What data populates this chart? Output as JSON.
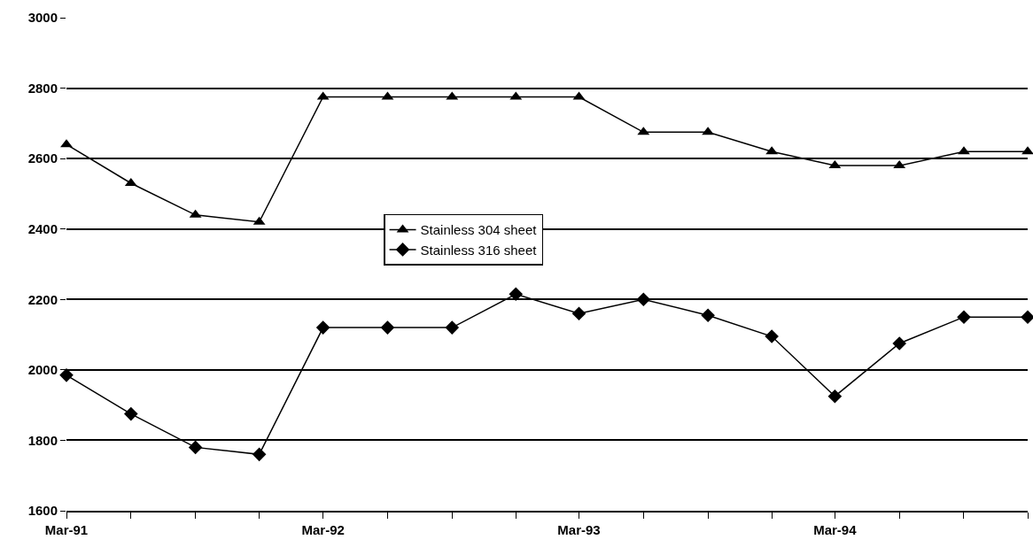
{
  "chart_data": {
    "type": "line",
    "x": [
      "1991-03",
      "1991-06",
      "1991-09",
      "1991-12",
      "1992-03",
      "1992-06",
      "1992-09",
      "1992-12",
      "1993-03",
      "1993-06",
      "1993-09",
      "1993-12",
      "1994-03",
      "1994-06",
      "1994-09",
      "1994-12"
    ],
    "series": [
      {
        "name": "Stainless 304 sheet",
        "color": "#000000",
        "marker": "triangle",
        "values": [
          2640,
          2530,
          2440,
          2420,
          2775,
          2775,
          2775,
          2775,
          2775,
          2675,
          2675,
          2620,
          2580,
          2580,
          2620,
          2620
        ]
      },
      {
        "name": "Stainless 316 sheet",
        "color": "#000000",
        "marker": "diamond",
        "values": [
          1985,
          1875,
          1780,
          1760,
          2120,
          2120,
          2120,
          2215,
          2160,
          2200,
          2155,
          2095,
          1925,
          2075,
          2150,
          2150
        ]
      }
    ],
    "xlim": [
      "1991-03",
      "1994-12"
    ],
    "xticks": [
      {
        "value": "1991-03",
        "label": "Mar-91"
      },
      {
        "value": "1991-06",
        "label": null
      },
      {
        "value": "1991-09",
        "label": null
      },
      {
        "value": "1991-12",
        "label": null
      },
      {
        "value": "1992-03",
        "label": "Mar-92"
      },
      {
        "value": "1992-06",
        "label": null
      },
      {
        "value": "1992-09",
        "label": null
      },
      {
        "value": "1992-12",
        "label": null
      },
      {
        "value": "1993-03",
        "label": "Mar-93"
      },
      {
        "value": "1993-06",
        "label": null
      },
      {
        "value": "1993-09",
        "label": null
      },
      {
        "value": "1993-12",
        "label": null
      },
      {
        "value": "1994-03",
        "label": "Mar-94"
      },
      {
        "value": "1994-06",
        "label": null
      },
      {
        "value": "1994-09",
        "label": null
      },
      {
        "value": "1994-12",
        "label": null
      }
    ],
    "ylim": [
      1600,
      3000
    ],
    "yticks": [
      1600,
      1800,
      2000,
      2200,
      2400,
      2600,
      2800,
      3000
    ],
    "grid": "y",
    "legend": "center",
    "line_style": "solid"
  }
}
